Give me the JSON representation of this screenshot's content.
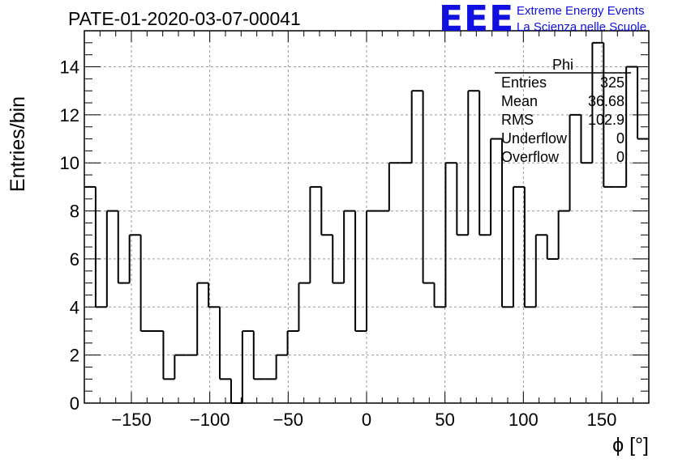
{
  "run_title": "PATE-01-2020-03-07-00041",
  "brand": {
    "logo": "EEE",
    "line1": "Extreme Energy Events",
    "line2": "La Scienza nelle Scuole",
    "color": "#1010e0"
  },
  "stats": {
    "name": "Phi",
    "rows": [
      {
        "label": "Entries",
        "value": "325"
      },
      {
        "label": "Mean",
        "value": "36.68"
      },
      {
        "label": "RMS",
        "value": "102.9"
      },
      {
        "label": "Underflow",
        "value": "0"
      },
      {
        "label": "Overflow",
        "value": "0"
      }
    ]
  },
  "chart_data": {
    "type": "bar",
    "histogram": true,
    "title": "PATE-01-2020-03-07-00041",
    "xlabel": "ϕ [°]",
    "ylabel": "Entries/bin",
    "xlim": [
      -180,
      180
    ],
    "ylim": [
      0,
      15.5
    ],
    "bin_width": 7.2,
    "x_ticks": [
      -150,
      -100,
      -50,
      0,
      50,
      100,
      150
    ],
    "x_tick_labels": [
      "−150",
      "−100",
      "−50",
      "0",
      "50",
      "100",
      "150"
    ],
    "y_ticks": [
      0,
      2,
      4,
      6,
      8,
      10,
      12,
      14
    ],
    "y_tick_labels": [
      "0",
      "2",
      "4",
      "6",
      "8",
      "10",
      "12",
      "14"
    ],
    "grid": true,
    "values": [
      9,
      4,
      8,
      5,
      7,
      3,
      3,
      1,
      2,
      2,
      5,
      4,
      1,
      0,
      3,
      1,
      1,
      2,
      3,
      5,
      9,
      7,
      5,
      8,
      3,
      8,
      8,
      10,
      10,
      13,
      5,
      4,
      10,
      7,
      13,
      7,
      11,
      4,
      9,
      4,
      7,
      6,
      8,
      12,
      10,
      15,
      9,
      9,
      14,
      11
    ]
  }
}
